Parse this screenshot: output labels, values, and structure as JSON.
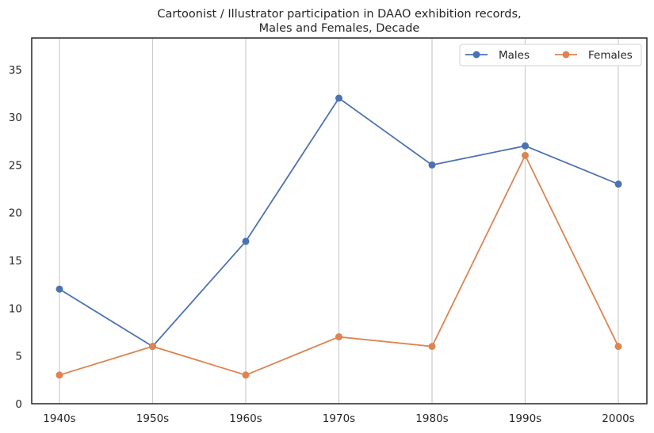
{
  "chart_data": {
    "type": "line",
    "title": [
      "Cartoonist / Illustrator participation in DAAO exhibition records,",
      "Males and Females, Decade"
    ],
    "xlabel": "",
    "ylabel": "",
    "categories": [
      "1940s",
      "1950s",
      "1960s",
      "1970s",
      "1980s",
      "1990s",
      "2000s"
    ],
    "yticks": [
      0,
      5,
      10,
      15,
      20,
      25,
      30,
      35
    ],
    "ylim": [
      0,
      38.3
    ],
    "grid": "vertical",
    "legend_position": "top-right",
    "series": [
      {
        "name": "Males",
        "color": "#4c72b0",
        "values": [
          12,
          6,
          17,
          32,
          25,
          27,
          23
        ]
      },
      {
        "name": "Females",
        "color": "#dd8452",
        "values": [
          3,
          6,
          3,
          7,
          6,
          26,
          6
        ]
      }
    ]
  }
}
